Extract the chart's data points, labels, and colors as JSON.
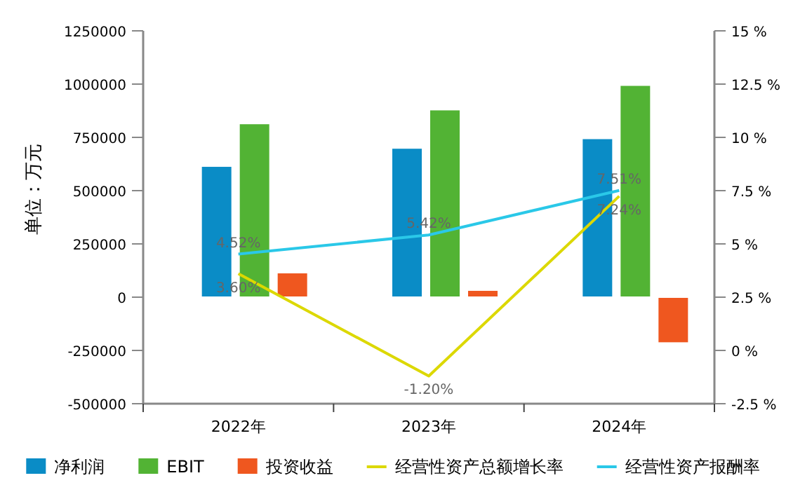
{
  "chart_data": {
    "type": "bar",
    "ylabel": "单位：万元",
    "categories": [
      "2022年",
      "2023年",
      "2024年"
    ],
    "series": [
      {
        "name": "净利润",
        "color": "#0a8cc6",
        "values": [
          615000,
          700000,
          745000
        ]
      },
      {
        "name": "EBIT",
        "color": "#52b334",
        "values": [
          815000,
          880000,
          995000
        ]
      },
      {
        "name": "投资收益",
        "color": "#ef571f",
        "values": [
          115000,
          33000,
          -215000
        ]
      },
      {
        "name": "经营性资产总额增长率",
        "type": "line",
        "axis": "y2",
        "color": "#dcd800",
        "values": [
          3.6,
          -1.2,
          7.24
        ],
        "value_labels": [
          "3.60%",
          "-1.20%",
          "7.24%"
        ]
      },
      {
        "name": "经营性资产报酬率",
        "type": "line",
        "axis": "y2",
        "color": "#2ac8e8",
        "values": [
          4.52,
          5.42,
          7.51
        ],
        "value_labels": [
          "4.52%",
          "5.42%",
          "7.51%"
        ]
      }
    ],
    "ylim": [
      -500000,
      1250000
    ],
    "yticks": [
      -500000,
      -250000,
      0,
      250000,
      500000,
      750000,
      1000000,
      1250000
    ],
    "y2lim": [
      -2.5,
      15
    ],
    "y2ticks": [
      {
        "value": -2.5,
        "label": "-2.5 %"
      },
      {
        "value": 0,
        "label": "0 %"
      },
      {
        "value": 2.5,
        "label": "2.5 %"
      },
      {
        "value": 5,
        "label": "5 %"
      },
      {
        "value": 7.5,
        "label": "7.5 %"
      },
      {
        "value": 10,
        "label": "10 %"
      },
      {
        "value": 12.5,
        "label": "12.5 %"
      },
      {
        "value": 15,
        "label": "15 %"
      }
    ],
    "legend": "bottom"
  }
}
